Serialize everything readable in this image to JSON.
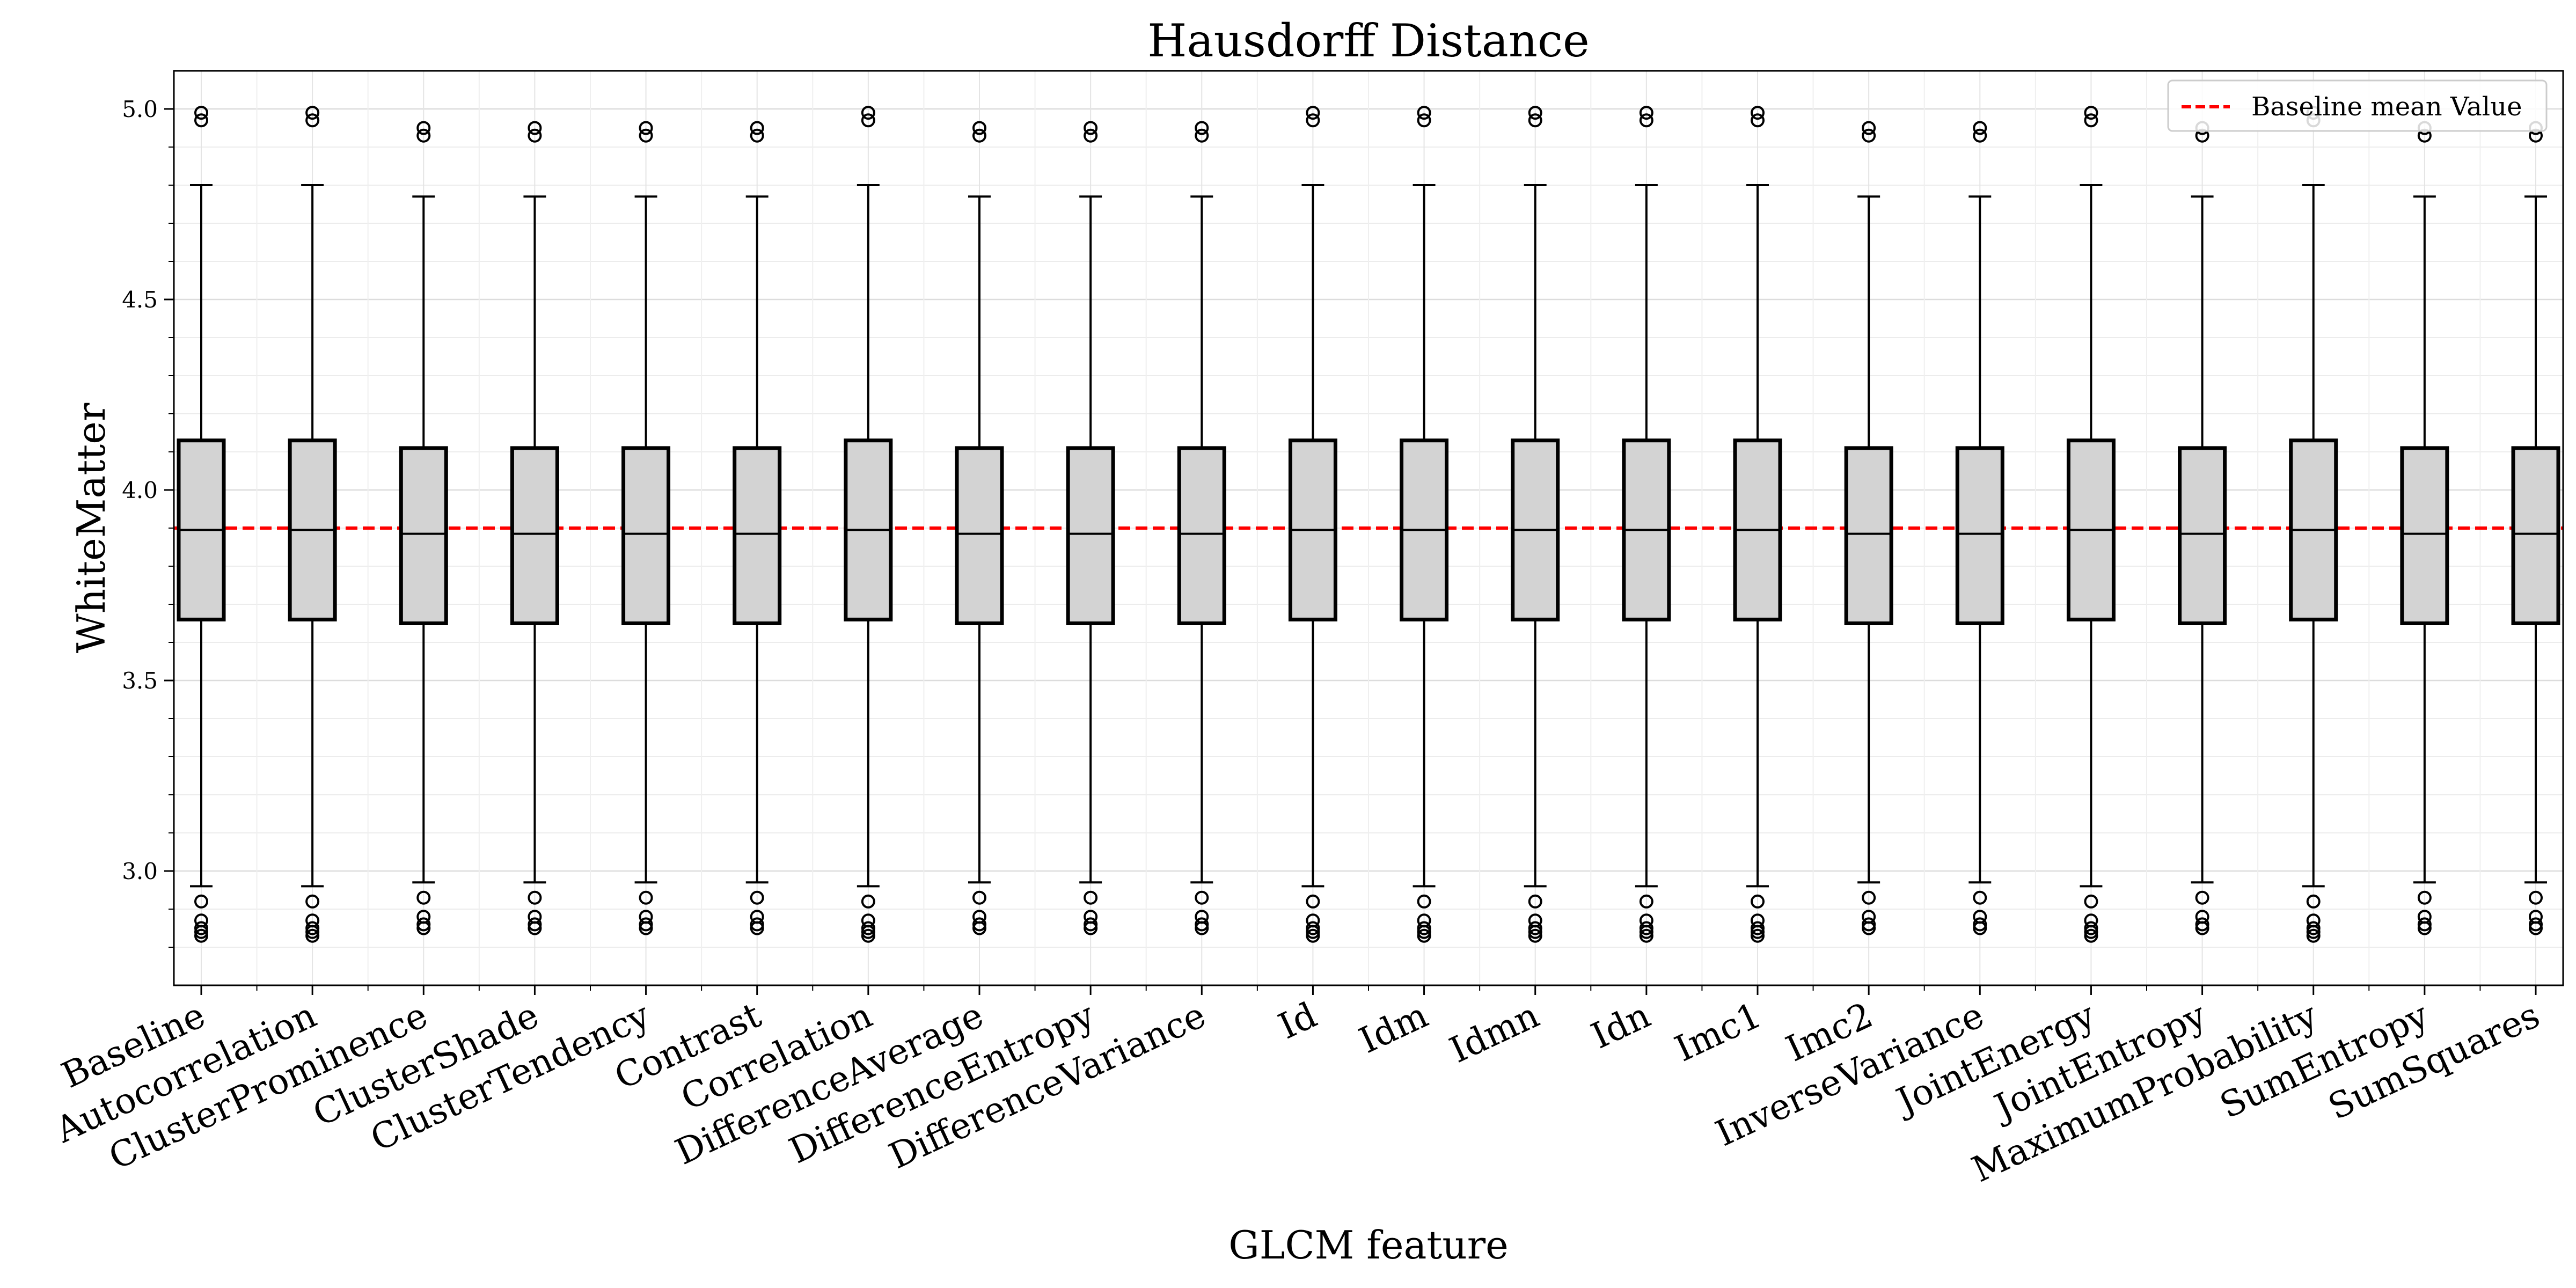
{
  "chart_data": {
    "type": "box",
    "title": "Hausdorff Distance",
    "xlabel": "GLCM feature",
    "ylabel": "WhiteMatter",
    "ylim": [
      2.7,
      5.1
    ],
    "yticks": [
      "3.0",
      "3.5",
      "4.0",
      "4.5",
      "5.0"
    ],
    "grid": true,
    "legend_position": "top-right",
    "colors": {
      "box_fill": "#d3d3d3",
      "box_edge": "#000000",
      "baseline_line": "#ff0000"
    },
    "reference_line": {
      "label": "Baseline mean Value",
      "y": 3.9,
      "style": "dashed"
    },
    "categories": [
      "Baseline",
      "Autocorrelation",
      "ClusterProminence",
      "ClusterShade",
      "ClusterTendency",
      "Contrast",
      "Correlation",
      "DifferenceAverage",
      "DifferenceEntropy",
      "DifferenceVariance",
      "Id",
      "Idm",
      "Idmn",
      "Idn",
      "Imc1",
      "Imc2",
      "InverseVariance",
      "JointEnergy",
      "JointEntropy",
      "MaximumProbability",
      "SumEntropy",
      "SumSquares"
    ],
    "boxes": [
      {
        "whislo": 2.96,
        "q1": 3.66,
        "med": 3.895,
        "q3": 4.13,
        "whishi": 4.8,
        "fliers": [
          2.92,
          2.87,
          2.85,
          2.84,
          2.83,
          4.97,
          4.99
        ]
      },
      {
        "whislo": 2.96,
        "q1": 3.66,
        "med": 3.895,
        "q3": 4.13,
        "whishi": 4.8,
        "fliers": [
          2.92,
          2.87,
          2.85,
          2.84,
          2.83,
          4.97,
          4.99
        ]
      },
      {
        "whislo": 2.97,
        "q1": 3.65,
        "med": 3.885,
        "q3": 4.11,
        "whishi": 4.77,
        "fliers": [
          2.93,
          2.88,
          2.86,
          2.85,
          4.93,
          4.95
        ]
      },
      {
        "whislo": 2.97,
        "q1": 3.65,
        "med": 3.885,
        "q3": 4.11,
        "whishi": 4.77,
        "fliers": [
          2.93,
          2.88,
          2.86,
          2.85,
          4.93,
          4.95
        ]
      },
      {
        "whislo": 2.97,
        "q1": 3.65,
        "med": 3.885,
        "q3": 4.11,
        "whishi": 4.77,
        "fliers": [
          2.93,
          2.88,
          2.86,
          2.85,
          4.93,
          4.95
        ]
      },
      {
        "whislo": 2.97,
        "q1": 3.65,
        "med": 3.885,
        "q3": 4.11,
        "whishi": 4.77,
        "fliers": [
          2.93,
          2.88,
          2.86,
          2.85,
          4.93,
          4.95
        ]
      },
      {
        "whislo": 2.96,
        "q1": 3.66,
        "med": 3.895,
        "q3": 4.13,
        "whishi": 4.8,
        "fliers": [
          2.92,
          2.87,
          2.85,
          2.84,
          2.83,
          4.97,
          4.99
        ]
      },
      {
        "whislo": 2.97,
        "q1": 3.65,
        "med": 3.885,
        "q3": 4.11,
        "whishi": 4.77,
        "fliers": [
          2.93,
          2.88,
          2.86,
          2.85,
          4.93,
          4.95
        ]
      },
      {
        "whislo": 2.97,
        "q1": 3.65,
        "med": 3.885,
        "q3": 4.11,
        "whishi": 4.77,
        "fliers": [
          2.93,
          2.88,
          2.86,
          2.85,
          4.93,
          4.95
        ]
      },
      {
        "whislo": 2.97,
        "q1": 3.65,
        "med": 3.885,
        "q3": 4.11,
        "whishi": 4.77,
        "fliers": [
          2.93,
          2.88,
          2.86,
          2.85,
          4.93,
          4.95
        ]
      },
      {
        "whislo": 2.96,
        "q1": 3.66,
        "med": 3.895,
        "q3": 4.13,
        "whishi": 4.8,
        "fliers": [
          2.92,
          2.87,
          2.85,
          2.84,
          2.83,
          4.97,
          4.99
        ]
      },
      {
        "whislo": 2.96,
        "q1": 3.66,
        "med": 3.895,
        "q3": 4.13,
        "whishi": 4.8,
        "fliers": [
          2.92,
          2.87,
          2.85,
          2.84,
          2.83,
          4.97,
          4.99
        ]
      },
      {
        "whislo": 2.96,
        "q1": 3.66,
        "med": 3.895,
        "q3": 4.13,
        "whishi": 4.8,
        "fliers": [
          2.92,
          2.87,
          2.85,
          2.84,
          2.83,
          4.97,
          4.99
        ]
      },
      {
        "whislo": 2.96,
        "q1": 3.66,
        "med": 3.895,
        "q3": 4.13,
        "whishi": 4.8,
        "fliers": [
          2.92,
          2.87,
          2.85,
          2.84,
          2.83,
          4.97,
          4.99
        ]
      },
      {
        "whislo": 2.96,
        "q1": 3.66,
        "med": 3.895,
        "q3": 4.13,
        "whishi": 4.8,
        "fliers": [
          2.92,
          2.87,
          2.85,
          2.84,
          2.83,
          4.97,
          4.99
        ]
      },
      {
        "whislo": 2.97,
        "q1": 3.65,
        "med": 3.885,
        "q3": 4.11,
        "whishi": 4.77,
        "fliers": [
          2.93,
          2.88,
          2.86,
          2.85,
          4.93,
          4.95
        ]
      },
      {
        "whislo": 2.97,
        "q1": 3.65,
        "med": 3.885,
        "q3": 4.11,
        "whishi": 4.77,
        "fliers": [
          2.93,
          2.88,
          2.86,
          2.85,
          4.93,
          4.95
        ]
      },
      {
        "whislo": 2.96,
        "q1": 3.66,
        "med": 3.895,
        "q3": 4.13,
        "whishi": 4.8,
        "fliers": [
          2.92,
          2.87,
          2.85,
          2.84,
          2.83,
          4.97,
          4.99
        ]
      },
      {
        "whislo": 2.97,
        "q1": 3.65,
        "med": 3.885,
        "q3": 4.11,
        "whishi": 4.77,
        "fliers": [
          2.93,
          2.88,
          2.86,
          2.85,
          4.93,
          4.95
        ]
      },
      {
        "whislo": 2.96,
        "q1": 3.66,
        "med": 3.895,
        "q3": 4.13,
        "whishi": 4.8,
        "fliers": [
          2.92,
          2.87,
          2.85,
          2.84,
          2.83,
          4.97,
          4.99
        ]
      },
      {
        "whislo": 2.97,
        "q1": 3.65,
        "med": 3.885,
        "q3": 4.11,
        "whishi": 4.77,
        "fliers": [
          2.93,
          2.88,
          2.86,
          2.85,
          4.93,
          4.95
        ]
      },
      {
        "whislo": 2.97,
        "q1": 3.65,
        "med": 3.885,
        "q3": 4.11,
        "whishi": 4.77,
        "fliers": [
          2.93,
          2.88,
          2.86,
          2.85,
          4.93,
          4.95
        ]
      }
    ]
  }
}
